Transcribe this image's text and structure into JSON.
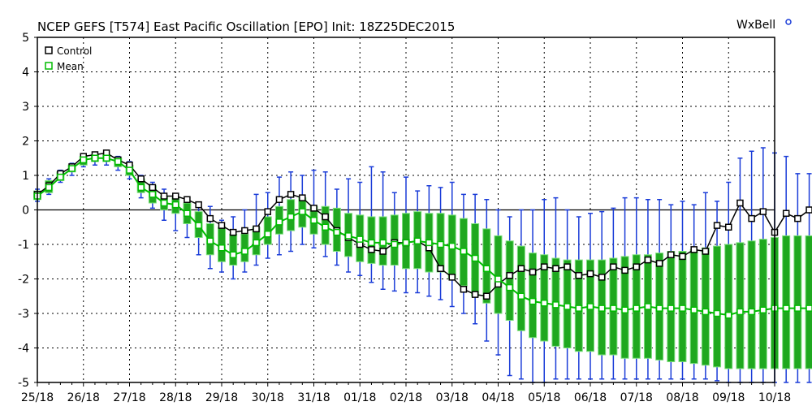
{
  "chart_data": {
    "type": "line",
    "title": "NCEP GEFS [T574] East Pacific Oscillation [EPO]   Init: 18Z25DEC2015",
    "logo": "WxBell",
    "xlabel": "",
    "ylabel": "",
    "ylim": [
      -5,
      5
    ],
    "yticks": [
      "5",
      "4",
      "3",
      "2",
      "1",
      "0",
      "-1",
      "-2",
      "-3",
      "-4",
      "-5"
    ],
    "xticks": [
      "25/18",
      "26/18",
      "27/18",
      "28/18",
      "29/18",
      "30/18",
      "31/18",
      "01/18",
      "02/18",
      "03/18",
      "04/18",
      "05/18",
      "06/18",
      "07/18",
      "08/18",
      "09/18",
      "10/18"
    ],
    "x_start": "25/18",
    "steps_per_day": 4,
    "grid": true,
    "legend": {
      "position": "top-left",
      "entries": [
        "Control",
        "Mean"
      ]
    },
    "colors": {
      "control": "#000000",
      "mean": "#00bb00",
      "box": "#1fa81f",
      "box_edge": "#7ee07e",
      "whisker": "#1a3cd8"
    },
    "series": [
      {
        "name": "Control",
        "values": [
          0.45,
          0.7,
          1.05,
          1.25,
          1.55,
          1.6,
          1.65,
          1.45,
          1.3,
          0.9,
          0.65,
          0.4,
          0.4,
          0.3,
          0.15,
          -0.25,
          -0.45,
          -0.65,
          -0.6,
          -0.55,
          -0.05,
          0.3,
          0.45,
          0.35,
          0.05,
          -0.2,
          -0.6,
          -0.8,
          -1.0,
          -1.15,
          -1.2,
          -0.95,
          -0.95,
          -0.9,
          -1.1,
          -1.7,
          -1.95,
          -2.3,
          -2.45,
          -2.5,
          -2.15,
          -1.9,
          -1.7,
          -1.8,
          -1.65,
          -1.7,
          -1.65,
          -1.9,
          -1.85,
          -1.95,
          -1.65,
          -1.75,
          -1.65,
          -1.45,
          -1.55,
          -1.3,
          -1.35,
          -1.15,
          -1.2,
          -0.45,
          -0.5,
          0.2,
          -0.25,
          -0.05,
          -0.65,
          -0.1,
          -0.25,
          0.0
        ]
      },
      {
        "name": "Mean",
        "values": [
          0.4,
          0.65,
          0.95,
          1.2,
          1.45,
          1.5,
          1.5,
          1.4,
          1.15,
          0.65,
          0.45,
          0.2,
          0.15,
          -0.1,
          -0.45,
          -0.9,
          -1.1,
          -1.3,
          -1.2,
          -0.95,
          -0.7,
          -0.35,
          -0.2,
          -0.05,
          -0.3,
          -0.5,
          -0.65,
          -0.75,
          -0.85,
          -0.95,
          -0.95,
          -1.0,
          -0.95,
          -0.9,
          -0.95,
          -1.0,
          -1.05,
          -1.2,
          -1.4,
          -1.7,
          -2.0,
          -2.25,
          -2.5,
          -2.65,
          -2.7,
          -2.75,
          -2.8,
          -2.85,
          -2.8,
          -2.85,
          -2.85,
          -2.9,
          -2.85,
          -2.8,
          -2.85,
          -2.85,
          -2.85,
          -2.9,
          -2.95,
          -3.0,
          -3.05,
          -2.95,
          -2.95,
          -2.9,
          -2.85,
          -2.85,
          -2.85,
          -2.85
        ]
      }
    ],
    "spread": {
      "box_low": [
        0.3,
        0.5,
        0.85,
        1.1,
        1.3,
        1.4,
        1.4,
        1.25,
        1.0,
        0.5,
        0.2,
        0.0,
        -0.1,
        -0.4,
        -0.8,
        -1.3,
        -1.5,
        -1.6,
        -1.5,
        -1.3,
        -1.0,
        -0.7,
        -0.6,
        -0.5,
        -0.7,
        -1.0,
        -1.2,
        -1.35,
        -1.5,
        -1.55,
        -1.6,
        -1.6,
        -1.7,
        -1.7,
        -1.8,
        -1.8,
        -2.0,
        -2.2,
        -2.5,
        -2.7,
        -3.0,
        -3.2,
        -3.5,
        -3.7,
        -3.8,
        -3.95,
        -4.0,
        -4.1,
        -4.1,
        -4.2,
        -4.2,
        -4.3,
        -4.3,
        -4.3,
        -4.35,
        -4.4,
        -4.4,
        -4.45,
        -4.5,
        -4.55,
        -4.6,
        -4.6,
        -4.6,
        -4.6,
        -4.6,
        -4.6,
        -4.6,
        -4.6
      ],
      "box_high": [
        0.55,
        0.85,
        1.1,
        1.3,
        1.55,
        1.6,
        1.6,
        1.5,
        1.3,
        0.9,
        0.7,
        0.4,
        0.35,
        0.2,
        -0.05,
        -0.4,
        -0.5,
        -0.7,
        -0.7,
        -0.5,
        -0.2,
        0.1,
        0.3,
        0.35,
        0.1,
        0.1,
        0.05,
        -0.1,
        -0.15,
        -0.2,
        -0.2,
        -0.15,
        -0.1,
        -0.05,
        -0.1,
        -0.1,
        -0.15,
        -0.25,
        -0.4,
        -0.55,
        -0.75,
        -0.9,
        -1.05,
        -1.25,
        -1.3,
        -1.4,
        -1.45,
        -1.45,
        -1.45,
        -1.45,
        -1.4,
        -1.35,
        -1.3,
        -1.3,
        -1.25,
        -1.2,
        -1.2,
        -1.15,
        -1.1,
        -1.05,
        -1.0,
        -0.95,
        -0.9,
        -0.85,
        -0.8,
        -0.75,
        -0.75,
        -0.75
      ],
      "whisker_low": [
        0.25,
        0.45,
        0.8,
        1.0,
        1.25,
        1.3,
        1.3,
        1.15,
        0.9,
        0.35,
        0.05,
        -0.3,
        -0.6,
        -0.8,
        -1.3,
        -1.7,
        -1.8,
        -2.0,
        -1.8,
        -1.6,
        -1.4,
        -1.3,
        -1.2,
        -1.0,
        -1.1,
        -1.35,
        -1.6,
        -1.8,
        -1.9,
        -2.1,
        -2.3,
        -2.35,
        -2.4,
        -2.4,
        -2.5,
        -2.6,
        -2.8,
        -3.0,
        -3.3,
        -3.8,
        -4.2,
        -4.8,
        -4.9,
        -5.0,
        -5.0,
        -4.9,
        -4.9,
        -4.9,
        -4.9,
        -4.9,
        -4.9,
        -4.9,
        -4.9,
        -4.9,
        -4.9,
        -4.9,
        -4.9,
        -4.9,
        -4.9,
        -4.95,
        -5.0,
        -5.0,
        -5.0,
        -5.0,
        -5.0,
        -5.0,
        -5.0,
        -5.0
      ],
      "whisker_high": [
        0.6,
        0.9,
        1.15,
        1.35,
        1.6,
        1.65,
        1.7,
        1.55,
        1.4,
        1.0,
        0.8,
        0.6,
        0.45,
        0.3,
        0.2,
        0.1,
        -0.3,
        -0.2,
        0.0,
        0.45,
        0.5,
        0.95,
        1.1,
        1.0,
        1.15,
        1.1,
        0.6,
        0.9,
        0.8,
        1.25,
        1.1,
        0.5,
        0.95,
        0.55,
        0.7,
        0.65,
        0.8,
        0.45,
        0.45,
        0.3,
        0.0,
        -0.2,
        0.0,
        0.0,
        0.3,
        0.35,
        0.0,
        -0.2,
        -0.1,
        -0.05,
        0.05,
        0.35,
        0.35,
        0.3,
        0.3,
        0.15,
        0.25,
        0.15,
        0.5,
        0.25,
        0.8,
        1.5,
        1.7,
        1.8,
        1.65,
        1.55,
        1.05,
        1.05
      ]
    }
  }
}
